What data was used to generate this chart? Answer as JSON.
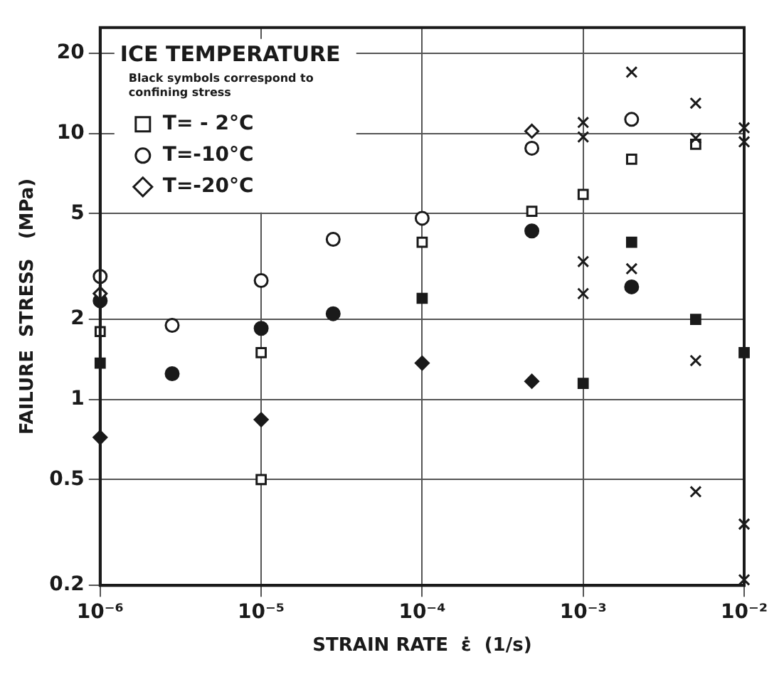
{
  "chart_data": {
    "type": "scatter",
    "xlabel": "STRAIN RATE  ε̇  (1/s)",
    "ylabel": "FAILURE  STRESS   (MPa)",
    "legend_title": "ICE TEMPERATURE",
    "annotations": [
      "Black symbols correspond to confining stress"
    ],
    "log": "xy",
    "grid": true,
    "legend": "top left",
    "xlim": [
      1e-06,
      0.01
    ],
    "ylim": [
      0.2,
      25
    ],
    "xticks": [
      {
        "value": 1e-06,
        "label": "10⁻⁶"
      },
      {
        "value": 1e-05,
        "label": "10⁻⁵"
      },
      {
        "value": 0.0001,
        "label": "10⁻⁴"
      },
      {
        "value": 0.001,
        "label": "10⁻³"
      },
      {
        "value": 0.01,
        "label": "10⁻²"
      }
    ],
    "yticks": [
      0.2,
      0.5,
      1,
      2,
      5,
      10,
      20
    ],
    "series": [
      {
        "name": "T= - 2°C",
        "marker": "square",
        "color": "#ffffff",
        "x": [
          1e-06,
          1e-05,
          1e-05,
          0.0001,
          0.00048,
          0.001,
          0.002,
          0.005
        ],
        "values": [
          1.8,
          1.5,
          0.5,
          3.9,
          5.1,
          5.9,
          8,
          9.1
        ]
      },
      {
        "name": "T=-10°C",
        "marker": "circle",
        "color": "#ffffff",
        "x": [
          1e-06,
          2.8e-06,
          1e-05,
          2.8e-05,
          0.0001,
          0.00048,
          0.002
        ],
        "values": [
          2.9,
          1.9,
          2.8,
          4,
          4.8,
          8.8,
          11.3
        ]
      },
      {
        "name": "T=-20°C",
        "marker": "diamond",
        "color": "#ffffff",
        "x": [
          1e-06,
          0.00048
        ],
        "values": [
          2.5,
          10.2
        ]
      },
      {
        "marker": "square",
        "color": "#1a1a1a",
        "x": [
          1e-06,
          0.0001,
          0.001,
          0.002,
          0.005,
          0.01
        ],
        "values": [
          1.37,
          2.4,
          1.15,
          3.9,
          2,
          1.5
        ]
      },
      {
        "marker": "circle",
        "color": "#1a1a1a",
        "x": [
          1e-06,
          2.8e-06,
          1e-05,
          2.8e-05,
          0.00048,
          0.002
        ],
        "values": [
          2.35,
          1.25,
          1.85,
          2.1,
          4.3,
          2.65
        ]
      },
      {
        "marker": "diamond",
        "color": "#1a1a1a",
        "x": [
          1e-06,
          1e-05,
          0.0001,
          0.00048
        ],
        "values": [
          0.72,
          0.84,
          1.37,
          1.17
        ]
      },
      {
        "marker": "cross",
        "color": "#1a1a1a",
        "x": [
          0.001,
          0.001,
          0.002,
          0.005,
          0.005,
          0.01,
          0.01,
          0.001,
          0.001,
          0.002,
          0.005,
          0.005,
          0.01,
          0.01
        ],
        "values": [
          11,
          9.7,
          17,
          13,
          9.6,
          10.5,
          9.3,
          3.3,
          2.5,
          3.1,
          1.4,
          0.45,
          0.34,
          0.21
        ]
      }
    ]
  }
}
